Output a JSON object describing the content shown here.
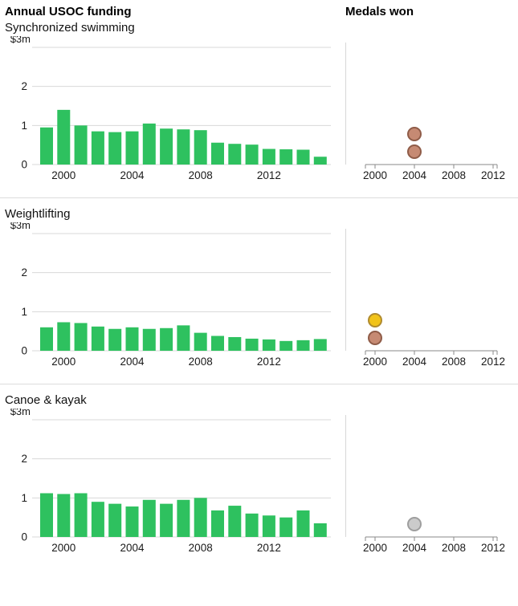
{
  "page": {
    "funding_title": "Annual USOC funding",
    "medals_title": "Medals won"
  },
  "colors": {
    "bar": "#2ec15f",
    "grid": "#d8d8d8",
    "axis": "#8a8a8a",
    "medal_gold_fill": "#f1c319",
    "medal_gold_stroke": "#b08b2e",
    "medal_silver_fill": "#cbcbcb",
    "medal_silver_stroke": "#9e9e9e",
    "medal_bronze_fill": "#c68a73",
    "medal_bronze_stroke": "#8f5c48"
  },
  "axes": {
    "y_label": "$3m",
    "y_max": 3,
    "y_ticks": [
      "2",
      "1",
      "0"
    ],
    "x_ticks": [
      2000,
      2004,
      2008,
      2012
    ]
  },
  "chart_data": [
    {
      "type": "bar",
      "title": "Synchronized swimming",
      "ylabel": "$3m",
      "ylim": [
        0,
        3
      ],
      "x": [
        1999,
        2000,
        2001,
        2002,
        2003,
        2004,
        2005,
        2006,
        2007,
        2008,
        2009,
        2010,
        2011,
        2012,
        2013,
        2014,
        2015
      ],
      "values": [
        0.95,
        1.4,
        1.0,
        0.85,
        0.83,
        0.85,
        1.05,
        0.92,
        0.9,
        0.88,
        0.56,
        0.53,
        0.51,
        0.4,
        0.39,
        0.38,
        0.2
      ],
      "medals": {
        "type": "scatter",
        "points": [
          {
            "year": 2004,
            "medal": "bronze"
          },
          {
            "year": 2004,
            "medal": "bronze"
          }
        ]
      }
    },
    {
      "type": "bar",
      "title": "Weightlifting",
      "ylabel": "$3m",
      "ylim": [
        0,
        3
      ],
      "x": [
        1999,
        2000,
        2001,
        2002,
        2003,
        2004,
        2005,
        2006,
        2007,
        2008,
        2009,
        2010,
        2011,
        2012,
        2013,
        2014,
        2015
      ],
      "values": [
        0.6,
        0.73,
        0.71,
        0.62,
        0.56,
        0.6,
        0.56,
        0.58,
        0.65,
        0.46,
        0.38,
        0.35,
        0.31,
        0.29,
        0.25,
        0.27,
        0.3
      ],
      "medals": {
        "type": "scatter",
        "points": [
          {
            "year": 2000,
            "medal": "bronze"
          },
          {
            "year": 2000,
            "medal": "gold"
          }
        ]
      }
    },
    {
      "type": "bar",
      "title": "Canoe & kayak",
      "ylabel": "$3m",
      "ylim": [
        0,
        3
      ],
      "x": [
        1999,
        2000,
        2001,
        2002,
        2003,
        2004,
        2005,
        2006,
        2007,
        2008,
        2009,
        2010,
        2011,
        2012,
        2013,
        2014,
        2015
      ],
      "values": [
        1.12,
        1.1,
        1.12,
        0.9,
        0.85,
        0.78,
        0.95,
        0.85,
        0.95,
        1.0,
        0.68,
        0.8,
        0.6,
        0.55,
        0.5,
        0.68,
        0.35
      ],
      "medals": {
        "type": "scatter",
        "points": [
          {
            "year": 2004,
            "medal": "silver"
          }
        ]
      }
    }
  ]
}
